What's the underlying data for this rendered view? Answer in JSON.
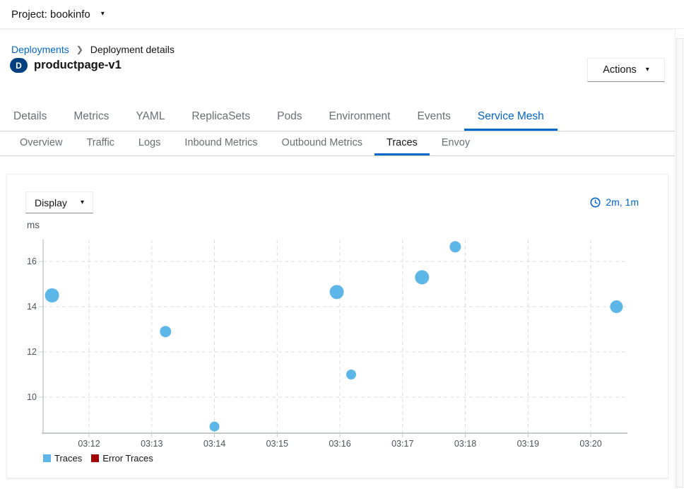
{
  "topbar": {
    "project_label": "Project: bookinfo"
  },
  "breadcrumb": {
    "items": [
      "Deployments",
      "Deployment details"
    ]
  },
  "header": {
    "badge": "D",
    "title": "productpage-v1",
    "actions_label": "Actions"
  },
  "main_tabs": {
    "active": "Service Mesh",
    "items": [
      "Details",
      "Metrics",
      "YAML",
      "ReplicaSets",
      "Pods",
      "Environment",
      "Events",
      "Service Mesh"
    ]
  },
  "sub_tabs": {
    "active": "Traces",
    "items": [
      "Overview",
      "Traffic",
      "Logs",
      "Inbound Metrics",
      "Outbound Metrics",
      "Traces",
      "Envoy"
    ]
  },
  "toolbar": {
    "display_label": "Display",
    "time_range": "2m, 1m",
    "clock_icon": "clock-icon",
    "caret_icon": "caret-down-icon"
  },
  "colors": {
    "accent_blue": "#0066cc",
    "badge_blue": "#004080",
    "trace_dot_blue": "#5cb7e8",
    "error_red": "#a30000",
    "grid_gray": "#dcdcdc",
    "axis_gray": "#c6c9cc",
    "tick_label_gray": "#4d5258"
  },
  "chart_data": {
    "type": "scatter",
    "title": "",
    "xlabel": "",
    "ylabel": "ms",
    "grid": "dashed",
    "legend_position": "bottom-left",
    "y_ticks": [
      10,
      12,
      14,
      16
    ],
    "y_range_ms": [
      8.4,
      17.0
    ],
    "x_ticks": [
      {
        "label": "03:12",
        "m": 12
      },
      {
        "label": "03:13",
        "m": 13
      },
      {
        "label": "03:14",
        "m": 14
      },
      {
        "label": "03:15",
        "m": 15
      },
      {
        "label": "03:16",
        "m": 16
      },
      {
        "label": "03:17",
        "m": 17
      },
      {
        "label": "03:18",
        "m": 18
      },
      {
        "label": "03:19",
        "m": 19
      },
      {
        "label": "03:20",
        "m": 20
      }
    ],
    "x_range_minutes": [
      11.27,
      20.58
    ],
    "series": [
      {
        "name": "Traces",
        "color": "#5cb7e8",
        "points": [
          {
            "time": "03:11:25",
            "m": 11.41,
            "ms": 14.5,
            "r": 10
          },
          {
            "time": "03:13:13",
            "m": 13.22,
            "ms": 12.9,
            "r": 8
          },
          {
            "time": "03:14:00",
            "m": 14.0,
            "ms": 8.7,
            "r": 7
          },
          {
            "time": "03:15:57",
            "m": 15.95,
            "ms": 14.65,
            "r": 10
          },
          {
            "time": "03:16:11",
            "m": 16.18,
            "ms": 11.0,
            "r": 7
          },
          {
            "time": "03:17:19",
            "m": 17.31,
            "ms": 15.3,
            "r": 10
          },
          {
            "time": "03:17:50",
            "m": 17.84,
            "ms": 16.65,
            "r": 8
          },
          {
            "time": "03:20:25",
            "m": 20.41,
            "ms": 14.0,
            "r": 9
          }
        ]
      },
      {
        "name": "Error Traces",
        "color": "#a30000",
        "points": []
      }
    ]
  }
}
